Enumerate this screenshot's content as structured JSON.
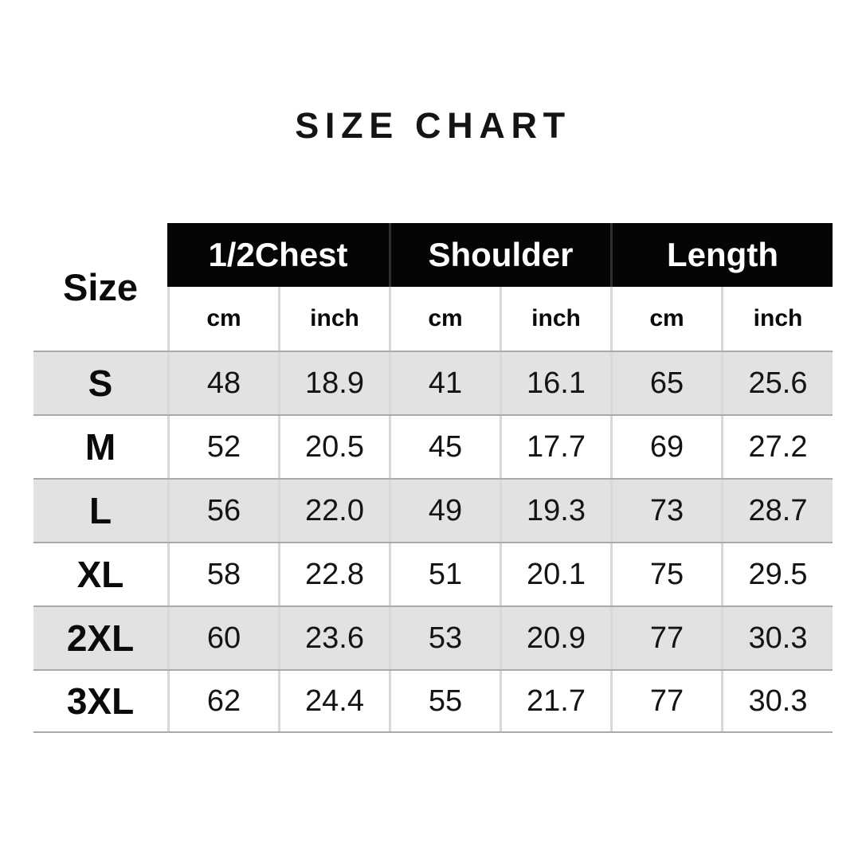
{
  "page": {
    "title": "SIZE CHART"
  },
  "size_chart": {
    "corner_label": "Size",
    "column_groups": [
      {
        "label": "1/2Chest"
      },
      {
        "label": "Shoulder"
      },
      {
        "label": "Length"
      }
    ],
    "unit_row": [
      "cm",
      "inch",
      "cm",
      "inch",
      "cm",
      "inch"
    ],
    "rows": [
      {
        "size": "S",
        "values": [
          "48",
          "18.9",
          "41",
          "16.1",
          "65",
          "25.6"
        ]
      },
      {
        "size": "M",
        "values": [
          "52",
          "20.5",
          "45",
          "17.7",
          "69",
          "27.2"
        ]
      },
      {
        "size": "L",
        "values": [
          "56",
          "22.0",
          "49",
          "19.3",
          "73",
          "28.7"
        ]
      },
      {
        "size": "XL",
        "values": [
          "58",
          "22.8",
          "51",
          "20.1",
          "75",
          "29.5"
        ]
      },
      {
        "size": "2XL",
        "values": [
          "60",
          "23.6",
          "53",
          "20.9",
          "77",
          "30.3"
        ]
      },
      {
        "size": "3XL",
        "values": [
          "62",
          "24.4",
          "55",
          "21.7",
          "77",
          "30.3"
        ]
      }
    ],
    "colors": {
      "header_bg": "#050505",
      "header_text": "#ffffff",
      "stripe_bg": "#e2e2e2",
      "row_bg": "#ffffff",
      "horizontal_border": "#a9a9a9",
      "vertical_divider": "#d9d9d9",
      "text": "#141414"
    }
  },
  "chart_data": {
    "type": "table",
    "title": "SIZE CHART",
    "columns": [
      "Size",
      "1/2Chest cm",
      "1/2Chest inch",
      "Shoulder cm",
      "Shoulder inch",
      "Length cm",
      "Length inch"
    ],
    "rows": [
      [
        "S",
        48,
        18.9,
        41,
        16.1,
        65,
        25.6
      ],
      [
        "M",
        52,
        20.5,
        45,
        17.7,
        69,
        27.2
      ],
      [
        "L",
        56,
        22.0,
        49,
        19.3,
        73,
        28.7
      ],
      [
        "XL",
        58,
        22.8,
        51,
        20.1,
        75,
        29.5
      ],
      [
        "2XL",
        60,
        23.6,
        53,
        20.9,
        77,
        30.3
      ],
      [
        "3XL",
        62,
        24.4,
        55,
        21.7,
        77,
        30.3
      ]
    ],
    "layout": {
      "striped_rows": true,
      "stripe_on": [
        "S",
        "L",
        "2XL"
      ],
      "group_header_style": "white-on-black"
    }
  }
}
